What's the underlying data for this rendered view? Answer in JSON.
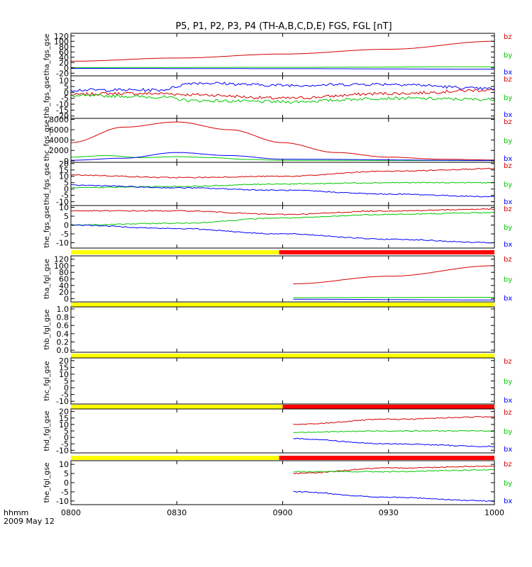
{
  "title": "P5, P1, P2, P3, P4 (TH-A,B,C,D,E) FGS, FGL [nT]",
  "footer": {
    "line1": "hhmm",
    "line2": "2009 May 12"
  },
  "colors": {
    "bx": "#0000ff",
    "by": "#00c800",
    "bz": "#d40000",
    "bar_yellow": "#ffff00",
    "bar_red": "#ff0000"
  },
  "chart_data": {
    "type": "line",
    "xlabel": "",
    "x_ticks": [
      "0800",
      "0830",
      "0900",
      "0930",
      "1000"
    ],
    "x_range": [
      "0800",
      "1000"
    ],
    "panels": [
      {
        "ylabel": "tha_fgs_gse",
        "ylim": [
          -30,
          130
        ],
        "yticks": [
          -20,
          0,
          20,
          40,
          60,
          80,
          100,
          120
        ],
        "ticklabels": [
          "-20",
          "0",
          "20",
          "40",
          "60",
          "80",
          "100",
          "120"
        ],
        "legend": [
          "bz",
          "by",
          "bx"
        ],
        "series": [
          {
            "name": "bz",
            "x": [
              "0800",
              "0830",
              "0900",
              "0930",
              "1000"
            ],
            "y": [
              25,
              37,
              52,
              70,
              100
            ]
          },
          {
            "name": "by",
            "x": [
              "0800",
              "0900",
              "1000"
            ],
            "y": [
              1,
              2,
              4
            ]
          },
          {
            "name": "bx",
            "x": [
              "0800",
              "0900",
              "1000"
            ],
            "y": [
              -2,
              -3,
              -5
            ]
          }
        ]
      },
      {
        "ylabel": "thb_fgs_gse",
        "ylim": [
          -22,
          14
        ],
        "yticks": [
          -20,
          -15,
          -10,
          -5,
          0,
          5,
          10
        ],
        "ticklabels": [
          "-20",
          "-15",
          "-10",
          "-5",
          "0",
          "5",
          "10"
        ],
        "legend": [
          "bz",
          "by",
          "bx"
        ],
        "series": [
          {
            "name": "bz",
            "x": [
              "0800",
              "0810",
              "0825",
              "0835",
              "0900",
              "0930",
              "1000"
            ],
            "y": [
              -2,
              -1,
              -1,
              -2,
              -5,
              -1,
              2
            ]
          },
          {
            "name": "by",
            "x": [
              "0800",
              "0810",
              "0825",
              "0835",
              "0900",
              "0930",
              "1000"
            ],
            "y": [
              -3,
              -3,
              -4,
              -7,
              -8,
              -5,
              -6
            ]
          },
          {
            "name": "bx",
            "x": [
              "0800",
              "0810",
              "0825",
              "0835",
              "0900",
              "0930",
              "1000"
            ],
            "y": [
              2,
              2,
              2,
              8,
              6,
              7,
              3
            ]
          }
        ]
      },
      {
        "ylabel": "thc_fgs_gse",
        "ylim": [
          -300,
          8200
        ],
        "yticks": [
          0,
          2000,
          4000,
          6000,
          8000
        ],
        "ticklabels": [
          "0",
          "2000",
          "4000",
          "6000",
          "8000"
        ],
        "legend": [
          "bz",
          "by",
          "bx"
        ],
        "series": [
          {
            "name": "bz",
            "x": [
              "0800",
              "0815",
              "0830",
              "0845",
              "0900",
              "0915",
              "0930",
              "0945",
              "1000"
            ],
            "y": [
              3500,
              6500,
              7500,
              6000,
              3500,
              1600,
              700,
              300,
              150
            ]
          },
          {
            "name": "by",
            "x": [
              "0800",
              "0810",
              "0820",
              "0830",
              "0840",
              "0850",
              "0900",
              "1000"
            ],
            "y": [
              700,
              1000,
              600,
              800,
              600,
              250,
              80,
              30
            ]
          },
          {
            "name": "bx",
            "x": [
              "0800",
              "0815",
              "0830",
              "0845",
              "0900",
              "1000"
            ],
            "y": [
              100,
              500,
              1600,
              1000,
              300,
              50
            ]
          }
        ]
      },
      {
        "ylabel": "thd_fgs_gse",
        "ylim": [
          -13,
          21
        ],
        "yticks": [
          -10,
          -5,
          0,
          5,
          10,
          15,
          20
        ],
        "ticklabels": [
          "-10",
          "-5",
          "0",
          "5",
          "10",
          "15",
          "20"
        ],
        "legend": [
          "bz",
          "by",
          "bx"
        ],
        "series": [
          {
            "name": "bz",
            "x": [
              "0800",
              "0830",
              "0900",
              "0930",
              "1000"
            ],
            "y": [
              11,
              9,
              10,
              14,
              16
            ]
          },
          {
            "name": "by",
            "x": [
              "0800",
              "0830",
              "0900",
              "0930",
              "1000"
            ],
            "y": [
              1,
              2,
              4,
              5,
              5
            ]
          },
          {
            "name": "bx",
            "x": [
              "0800",
              "0830",
              "0900",
              "0930",
              "1000"
            ],
            "y": [
              3,
              1,
              -1,
              -4,
              -6
            ]
          }
        ]
      },
      {
        "ylabel": "the_fgs_gse",
        "ylim": [
          -13,
          11
        ],
        "yticks": [
          -10,
          -5,
          0,
          5,
          10
        ],
        "ticklabels": [
          "-10",
          "-5",
          "0",
          "5",
          "10"
        ],
        "legend": [
          "bz",
          "by",
          "bx"
        ],
        "series": [
          {
            "name": "bz",
            "x": [
              "0800",
              "0830",
              "0900",
              "0930",
              "1000"
            ],
            "y": [
              8,
              8,
              6,
              8,
              9
            ]
          },
          {
            "name": "by",
            "x": [
              "0800",
              "0830",
              "0900",
              "0930",
              "1000"
            ],
            "y": [
              0,
              1,
              4,
              6,
              7
            ]
          },
          {
            "name": "bx",
            "x": [
              "0800",
              "0830",
              "0900",
              "0930",
              "1000"
            ],
            "y": [
              0,
              -2,
              -5,
              -8,
              -10
            ]
          }
        ]
      },
      {
        "ylabel": "tha_fgl_gse",
        "ylim": [
          -10,
          130
        ],
        "yticks": [
          0,
          20,
          40,
          60,
          80,
          100,
          120
        ],
        "ticklabels": [
          "0",
          "20",
          "40",
          "60",
          "80",
          "100",
          "120"
        ],
        "legend": [
          "bz",
          "by",
          "bx"
        ],
        "bar": {
          "yellow_until": "0859",
          "red_from": "0859"
        },
        "series": [
          {
            "name": "bz",
            "x": [
              "0903",
              "0930",
              "1000"
            ],
            "y": [
              45,
              68,
              100
            ]
          },
          {
            "name": "by",
            "x": [
              "0903",
              "1000"
            ],
            "y": [
              3,
              4
            ]
          },
          {
            "name": "bx",
            "x": [
              "0903",
              "1000"
            ],
            "y": [
              -2,
              -4
            ]
          }
        ]
      },
      {
        "ylabel": "thb_fgl_gse",
        "ylim": [
          -0.05,
          1.05
        ],
        "yticks": [
          0,
          0.2,
          0.4,
          0.6,
          0.8,
          1.0
        ],
        "ticklabels": [
          "0.0",
          "0.2",
          "0.4",
          "0.6",
          "0.8",
          "1.0"
        ],
        "legend": [],
        "bar": {
          "yellow_until": "1000",
          "red_from": null
        },
        "series": []
      },
      {
        "ylabel": "thc_fgl_gse",
        "ylim": [
          -12,
          22
        ],
        "yticks": [
          -10,
          -5,
          0,
          5,
          10,
          15,
          20
        ],
        "ticklabels": [
          "-10",
          "-5",
          "0",
          "5",
          "10",
          "15",
          "20"
        ],
        "legend": [
          "bz",
          "by",
          "bx"
        ],
        "bar": {
          "yellow_until": "1000",
          "red_from": null
        },
        "series": []
      },
      {
        "ylabel": "thd_fgl_gse",
        "ylim": [
          -12,
          22
        ],
        "yticks": [
          -10,
          -5,
          0,
          5,
          10,
          15,
          20
        ],
        "ticklabels": [
          "-10",
          "-5",
          "0",
          "5",
          "10",
          "15",
          "20"
        ],
        "legend": [
          "bz",
          "by",
          "bx"
        ],
        "bar": {
          "yellow_until": "0900",
          "red_from": "0900"
        },
        "series": [
          {
            "name": "bz",
            "x": [
              "0903",
              "0930",
              "1000"
            ],
            "y": [
              10,
              14,
              16
            ]
          },
          {
            "name": "by",
            "x": [
              "0903",
              "0930",
              "1000"
            ],
            "y": [
              4,
              5,
              5
            ]
          },
          {
            "name": "bx",
            "x": [
              "0903",
              "0930",
              "1000"
            ],
            "y": [
              -1,
              -5,
              -7
            ]
          }
        ]
      },
      {
        "ylabel": "the_fgl_gse",
        "ylim": [
          -12,
          12
        ],
        "yticks": [
          -10,
          -5,
          0,
          5,
          10
        ],
        "ticklabels": [
          "-10",
          "-5",
          "0",
          "5",
          "10"
        ],
        "legend": [
          "bz",
          "by",
          "bx"
        ],
        "bar": {
          "yellow_until": "0859",
          "red_from": "0859"
        },
        "series": [
          {
            "name": "bz",
            "x": [
              "0903",
              "0930",
              "1000"
            ],
            "y": [
              5,
              8,
              9
            ]
          },
          {
            "name": "by",
            "x": [
              "0903",
              "0930",
              "1000"
            ],
            "y": [
              6,
              6,
              7
            ]
          },
          {
            "name": "bx",
            "x": [
              "0903",
              "0930",
              "1000"
            ],
            "y": [
              -5,
              -8,
              -10
            ]
          }
        ]
      }
    ]
  }
}
